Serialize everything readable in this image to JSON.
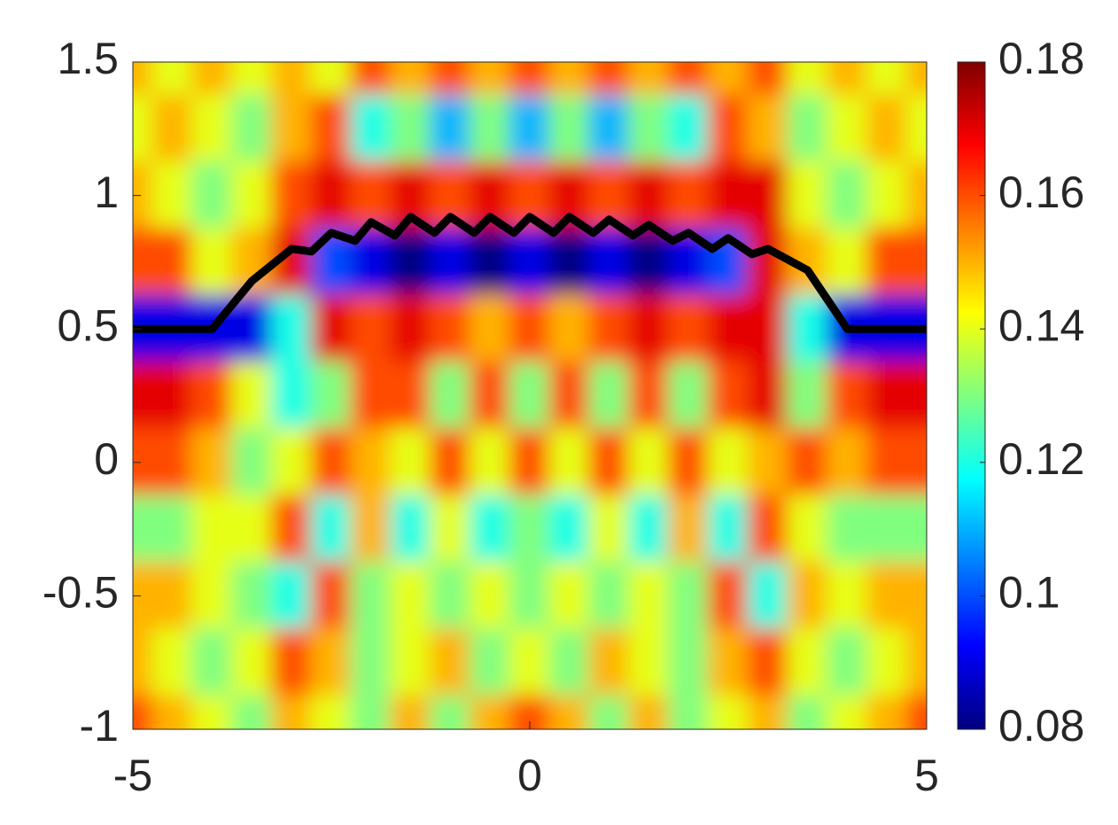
{
  "chart_data": {
    "type": "heatmap",
    "colormap": "jet",
    "x": [
      -5,
      -4.5,
      -4,
      -3.5,
      -3,
      -2.5,
      -2,
      -1.5,
      -1,
      -0.5,
      0,
      0.5,
      1,
      1.5,
      2,
      2.5,
      3,
      3.5,
      4,
      4.5,
      5
    ],
    "y": [
      1.5,
      1.25,
      1,
      0.75,
      0.5,
      0.25,
      0,
      -0.25,
      -0.5,
      -0.75,
      -1
    ],
    "z": [
      [
        0.15,
        0.14,
        0.15,
        0.14,
        0.15,
        0.14,
        0.16,
        0.15,
        0.16,
        0.15,
        0.16,
        0.15,
        0.16,
        0.15,
        0.16,
        0.15,
        0.16,
        0.14,
        0.15,
        0.14,
        0.15
      ],
      [
        0.14,
        0.15,
        0.14,
        0.13,
        0.15,
        0.16,
        0.12,
        0.13,
        0.11,
        0.13,
        0.11,
        0.13,
        0.11,
        0.13,
        0.12,
        0.16,
        0.15,
        0.13,
        0.14,
        0.15,
        0.14
      ],
      [
        0.15,
        0.14,
        0.13,
        0.14,
        0.16,
        0.17,
        0.16,
        0.17,
        0.16,
        0.17,
        0.16,
        0.17,
        0.16,
        0.17,
        0.16,
        0.17,
        0.17,
        0.14,
        0.13,
        0.14,
        0.15
      ],
      [
        0.16,
        0.16,
        0.14,
        0.15,
        0.17,
        0.1,
        0.09,
        0.08,
        0.09,
        0.08,
        0.09,
        0.08,
        0.09,
        0.08,
        0.09,
        0.1,
        0.17,
        0.15,
        0.14,
        0.16,
        0.16
      ],
      [
        0.09,
        0.09,
        0.09,
        0.09,
        0.12,
        0.17,
        0.16,
        0.17,
        0.16,
        0.15,
        0.16,
        0.15,
        0.16,
        0.17,
        0.16,
        0.17,
        0.17,
        0.12,
        0.09,
        0.09,
        0.09
      ],
      [
        0.17,
        0.17,
        0.16,
        0.14,
        0.12,
        0.13,
        0.16,
        0.16,
        0.13,
        0.16,
        0.13,
        0.16,
        0.13,
        0.16,
        0.13,
        0.16,
        0.17,
        0.13,
        0.16,
        0.17,
        0.17
      ],
      [
        0.16,
        0.16,
        0.15,
        0.13,
        0.14,
        0.16,
        0.15,
        0.14,
        0.16,
        0.14,
        0.16,
        0.14,
        0.16,
        0.14,
        0.16,
        0.14,
        0.15,
        0.16,
        0.15,
        0.16,
        0.16
      ],
      [
        0.13,
        0.13,
        0.14,
        0.14,
        0.16,
        0.12,
        0.15,
        0.12,
        0.14,
        0.12,
        0.13,
        0.12,
        0.14,
        0.12,
        0.15,
        0.12,
        0.16,
        0.14,
        0.13,
        0.13,
        0.13
      ],
      [
        0.15,
        0.15,
        0.14,
        0.13,
        0.12,
        0.16,
        0.13,
        0.14,
        0.13,
        0.14,
        0.13,
        0.14,
        0.13,
        0.14,
        0.13,
        0.16,
        0.12,
        0.15,
        0.14,
        0.15,
        0.15
      ],
      [
        0.15,
        0.14,
        0.13,
        0.14,
        0.16,
        0.15,
        0.13,
        0.14,
        0.15,
        0.13,
        0.14,
        0.13,
        0.15,
        0.14,
        0.13,
        0.15,
        0.16,
        0.14,
        0.13,
        0.14,
        0.15
      ],
      [
        0.16,
        0.15,
        0.14,
        0.13,
        0.15,
        0.14,
        0.13,
        0.15,
        0.13,
        0.15,
        0.16,
        0.15,
        0.13,
        0.15,
        0.13,
        0.14,
        0.15,
        0.13,
        0.14,
        0.15,
        0.16
      ]
    ],
    "curve": {
      "color": "#000000",
      "x": [
        -5,
        -4,
        -3.5,
        -3,
        -2.75,
        -2.5,
        -2.2,
        -2,
        -1.7,
        -1.5,
        -1.2,
        -1,
        -0.7,
        -0.5,
        -0.2,
        0,
        0.3,
        0.5,
        0.8,
        1,
        1.3,
        1.5,
        1.8,
        2,
        2.3,
        2.5,
        2.8,
        3,
        3.5,
        4,
        5
      ],
      "y": [
        0.5,
        0.5,
        0.68,
        0.8,
        0.79,
        0.86,
        0.83,
        0.9,
        0.85,
        0.92,
        0.86,
        0.92,
        0.86,
        0.92,
        0.86,
        0.92,
        0.86,
        0.92,
        0.86,
        0.91,
        0.85,
        0.89,
        0.83,
        0.86,
        0.8,
        0.84,
        0.78,
        0.8,
        0.72,
        0.5,
        0.5
      ]
    },
    "xlim": [
      -5,
      5
    ],
    "ylim": [
      -1,
      1.5
    ],
    "xticks": [
      -5,
      0,
      5
    ],
    "yticks": [
      -1,
      -0.5,
      0,
      0.5,
      1,
      1.5
    ],
    "clim": [
      0.08,
      0.18
    ],
    "cticks": [
      0.08,
      0.1,
      0.12,
      0.14,
      0.16,
      0.18
    ]
  }
}
